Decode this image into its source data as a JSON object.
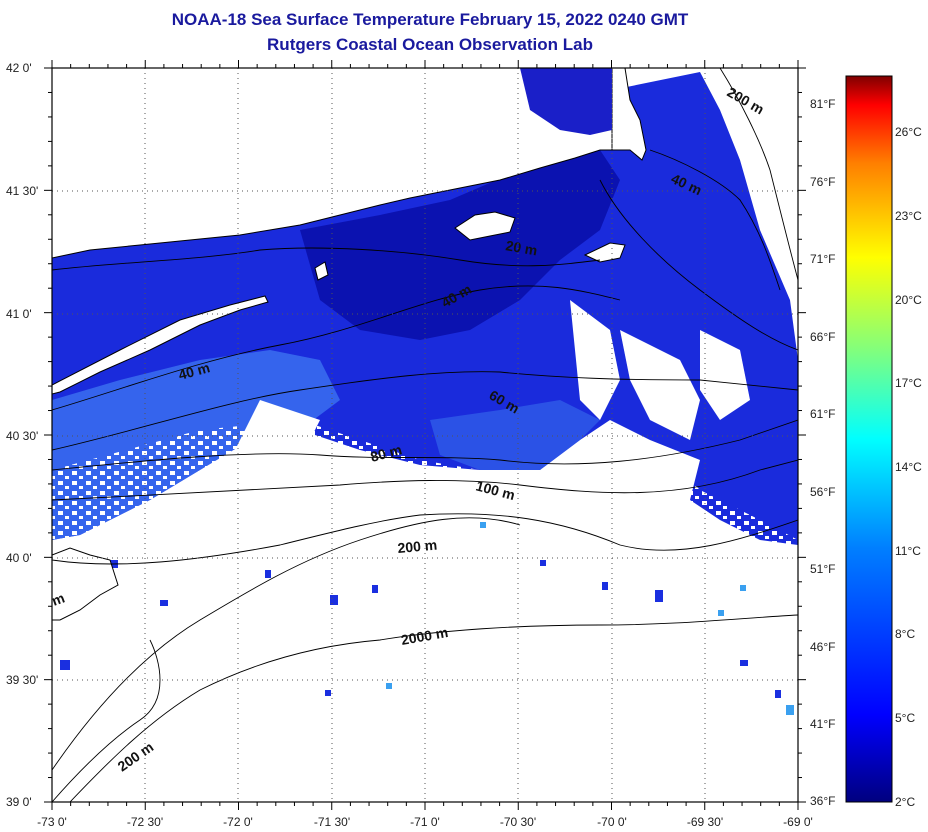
{
  "title": {
    "line1": "NOAA-18 Sea Surface Temperature February 15, 2022 0240 GMT",
    "line2": "Rutgers Coastal Ocean Observation Lab"
  },
  "map": {
    "lat_labels": [
      "42 0'",
      "41 30'",
      "41 0'",
      "40 30'",
      "40 0'",
      "39 30'",
      "39 0'"
    ],
    "lon_labels": [
      "-73 0'",
      "-72 30'",
      "-72 0'",
      "-71 30'",
      "-71 0'",
      "-70 30'",
      "-70 0'",
      "-69 30'",
      "-69 0'"
    ],
    "fahrenheit_labels": [
      "81°F",
      "76°F",
      "71°F",
      "66°F",
      "61°F",
      "56°F",
      "51°F",
      "46°F",
      "41°F",
      "36°F"
    ],
    "contour_labels": [
      "200 m",
      "40 m",
      "20 m",
      "40 m",
      "40 m",
      "60 m",
      "80 m",
      "100 m",
      "200 m",
      "2000 m",
      "200 m",
      "m"
    ],
    "land_color": "#ffffff",
    "sst_colors": [
      "#0a10a8",
      "#1a2fe0",
      "#2f63f0",
      "#3a8af0"
    ]
  },
  "colorbar": {
    "celsius_labels": [
      "26°C",
      "23°C",
      "20°C",
      "17°C",
      "14°C",
      "11°C",
      "8°C",
      "5°C",
      "2°C"
    ],
    "stops": [
      "#00007f",
      "#0000ff",
      "#007fff",
      "#00ffff",
      "#7fff7f",
      "#ffff00",
      "#ff7f00",
      "#ff0000",
      "#7f0000"
    ]
  }
}
